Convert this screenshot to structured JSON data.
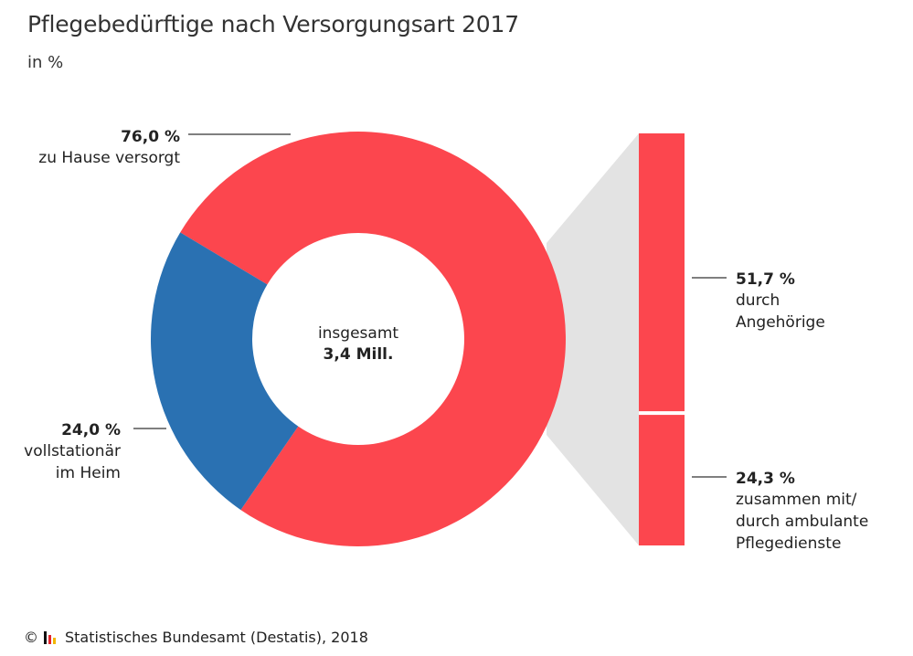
{
  "title": "Pflegebedürftige nach Versorgungsart 2017",
  "subtitle": "in %",
  "footer": {
    "copyright": "©",
    "source": "Statistisches Bundesamt (Destatis), 2018"
  },
  "colors": {
    "red": "#fc464e",
    "blue": "#2a71b2",
    "connector": "#e3e3e3",
    "leader": "#333333"
  },
  "chart_data": {
    "type": "pie",
    "variant": "donut-with-breakout-bar",
    "center_label": {
      "line1": "insgesamt",
      "line2": "3,4 Mill."
    },
    "slices": [
      {
        "id": "home",
        "value": 76.0,
        "value_label": "76,0 %",
        "label": "zu Hause versorgt",
        "color": "#fc464e"
      },
      {
        "id": "stationary",
        "value": 24.0,
        "value_label": "24,0 %",
        "label_lines": [
          "vollstationär",
          "im Heim"
        ],
        "color": "#2a71b2"
      }
    ],
    "breakout": {
      "of": "home",
      "segments": [
        {
          "id": "relatives",
          "value": 51.7,
          "value_label": "51,7 %",
          "label_lines": [
            "durch",
            "Angehörige"
          ],
          "color": "#fc464e"
        },
        {
          "id": "ambulant",
          "value": 24.3,
          "value_label": "24,3 %",
          "label_lines": [
            "zusammen mit/",
            "durch ambulante",
            "Pflegedienste"
          ],
          "color": "#fc464e"
        }
      ]
    }
  }
}
